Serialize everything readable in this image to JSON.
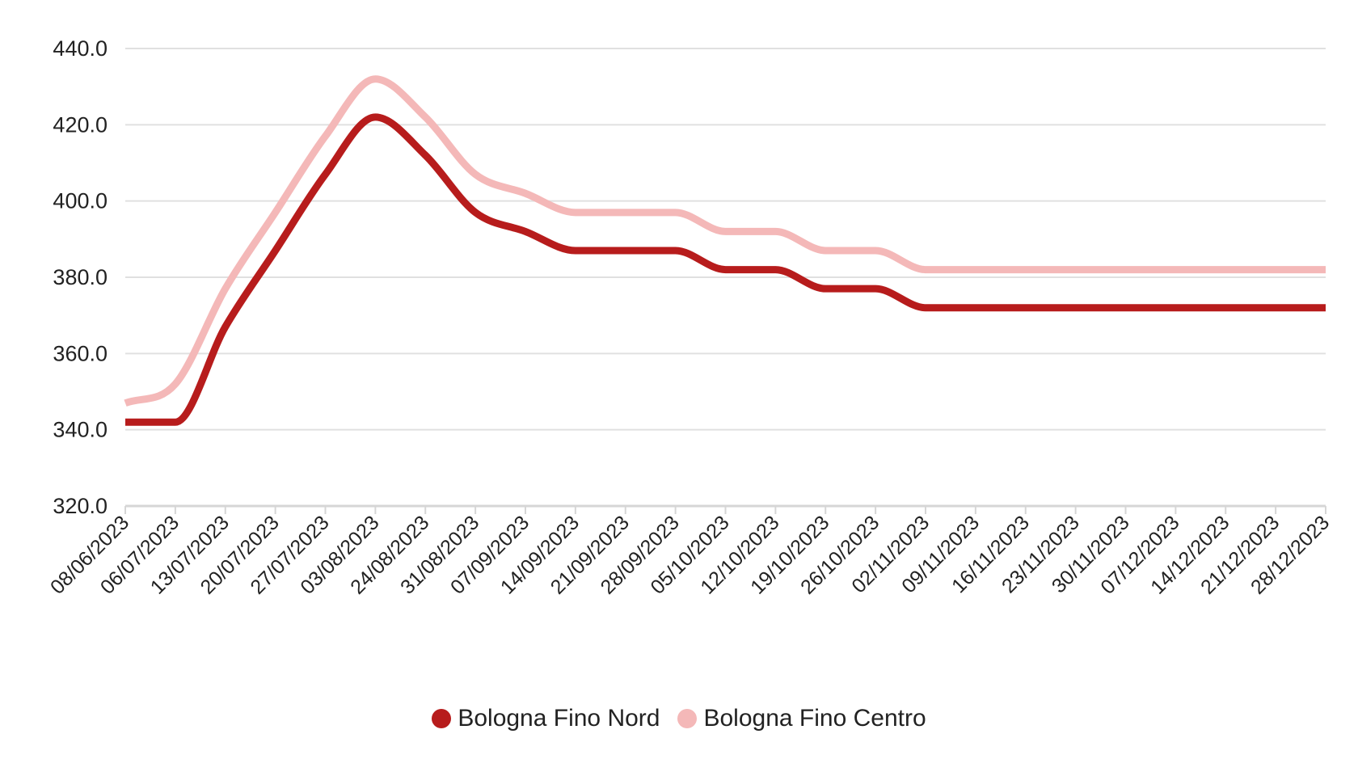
{
  "chart_data": {
    "type": "line",
    "title": "",
    "xlabel": "",
    "ylabel": "",
    "ylim": [
      320,
      440
    ],
    "yticks": [
      "320.0",
      "340.0",
      "360.0",
      "380.0",
      "400.0",
      "420.0",
      "440.0"
    ],
    "grid": true,
    "legend_position": "bottom",
    "categories": [
      "08/06/2023",
      "06/07/2023",
      "13/07/2023",
      "20/07/2023",
      "27/07/2023",
      "03/08/2023",
      "24/08/2023",
      "31/08/2023",
      "07/09/2023",
      "14/09/2023",
      "21/09/2023",
      "28/09/2023",
      "05/10/2023",
      "12/10/2023",
      "19/10/2023",
      "26/10/2023",
      "02/11/2023",
      "09/11/2023",
      "16/11/2023",
      "23/11/2023",
      "30/11/2023",
      "07/12/2023",
      "14/12/2023",
      "21/12/2023",
      "28/12/2023"
    ],
    "series": [
      {
        "name": "Bologna Fino Nord",
        "color": "#b71c1c",
        "values": [
          342,
          342,
          367,
          387,
          407,
          422,
          412,
          397,
          392,
          387,
          387,
          387,
          382,
          382,
          377,
          377,
          372,
          372,
          372,
          372,
          372,
          372,
          372,
          372,
          372
        ]
      },
      {
        "name": "Bologna Fino Centro",
        "color": "#f4b8b8",
        "values": [
          347,
          352,
          377,
          397,
          417,
          432,
          422,
          407,
          402,
          397,
          397,
          397,
          392,
          392,
          387,
          387,
          382,
          382,
          382,
          382,
          382,
          382,
          382,
          382,
          382
        ]
      }
    ]
  }
}
